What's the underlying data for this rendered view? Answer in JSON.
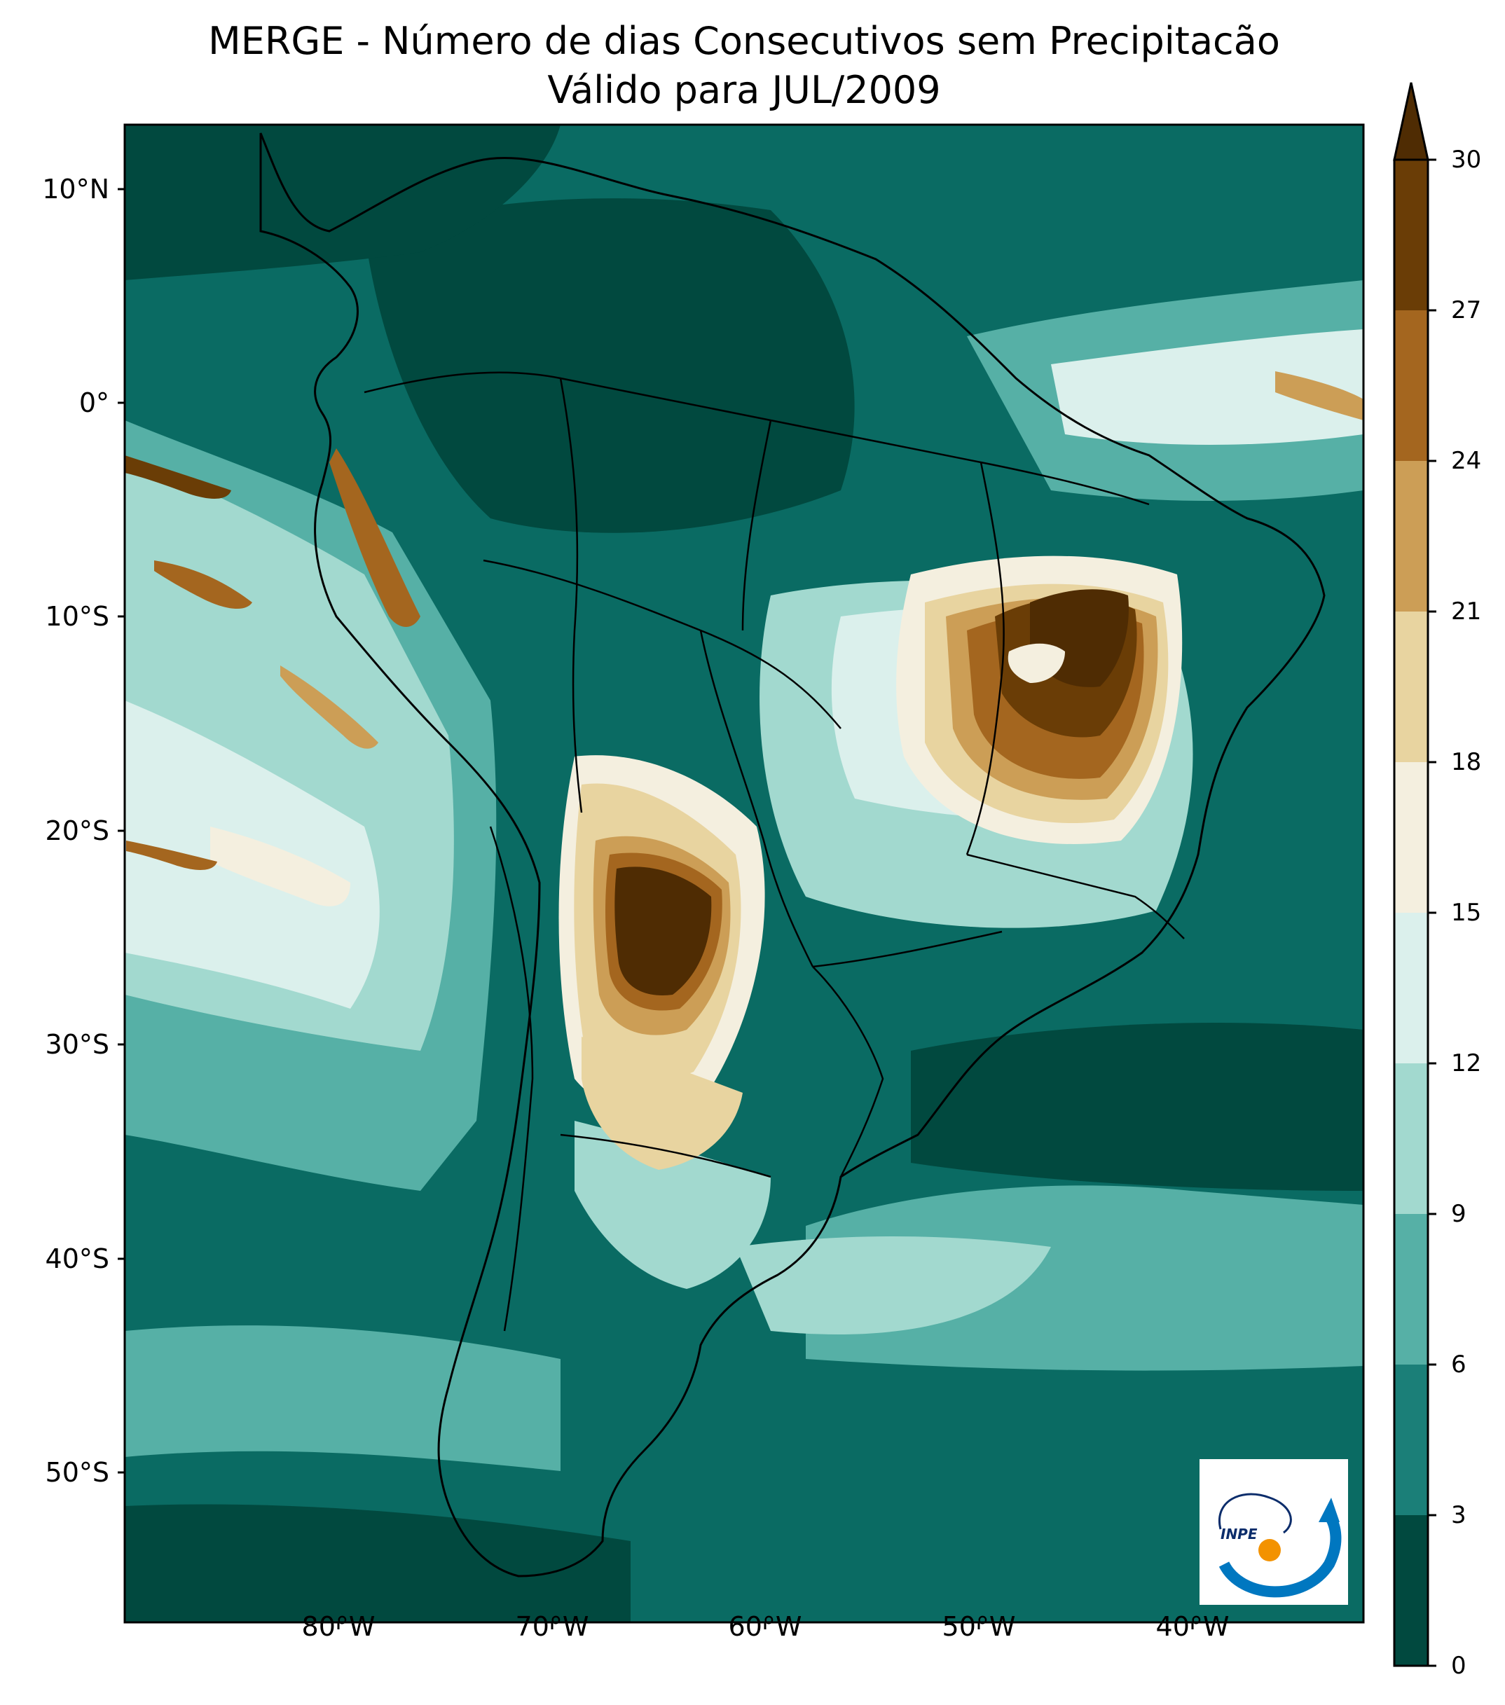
{
  "title": {
    "line1": "MERGE - Número de dias Consecutivos sem Precipitacão",
    "line2": "Válido para JUL/2009"
  },
  "map": {
    "lat_ticks": [
      "10°N",
      "0°",
      "10°S",
      "20°S",
      "30°S",
      "40°S",
      "50°S"
    ],
    "lon_ticks": [
      "80°W",
      "70°W",
      "60°W",
      "50°W",
      "40°W"
    ],
    "extent": {
      "lon": [
        -90,
        -32
      ],
      "lat": [
        -57,
        13
      ]
    },
    "background_color": "#0a6b63"
  },
  "colorbar": {
    "ticks": [
      "30",
      "27",
      "24",
      "21",
      "18",
      "15",
      "12",
      "9",
      "6",
      "3",
      "0"
    ],
    "bins": [
      {
        "from": 0,
        "to": 3,
        "color": "#01493f"
      },
      {
        "from": 3,
        "to": 6,
        "color": "#1b7f78"
      },
      {
        "from": 6,
        "to": 9,
        "color": "#56b0a6"
      },
      {
        "from": 9,
        "to": 12,
        "color": "#a2d9cf"
      },
      {
        "from": 12,
        "to": 15,
        "color": "#dbf0ec"
      },
      {
        "from": 15,
        "to": 18,
        "color": "#f4efdf"
      },
      {
        "from": 18,
        "to": 21,
        "color": "#e8d4a0"
      },
      {
        "from": 21,
        "to": 24,
        "color": "#cc9e56"
      },
      {
        "from": 24,
        "to": 27,
        "color": "#a4661f"
      },
      {
        "from": 27,
        "to": 30,
        "color": "#6a3d06"
      }
    ],
    "extend_color": "#4f2c03"
  },
  "logo": {
    "text": "INPE"
  }
}
